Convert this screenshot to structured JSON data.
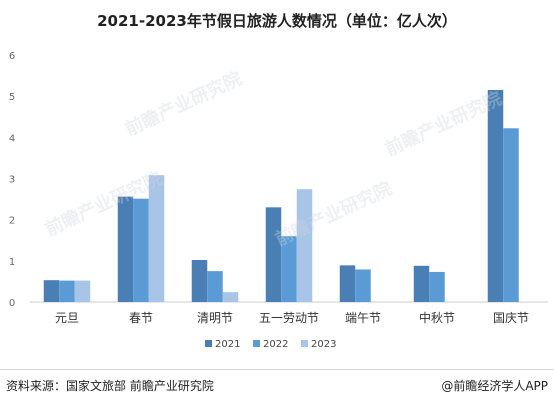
{
  "chart_data": {
    "type": "bar",
    "title": "2021-2023年节假日旅游人数情况（单位：亿人次）",
    "categories": [
      "元旦",
      "春节",
      "清明节",
      "五一劳动节",
      "端午节",
      "中秋节",
      "国庆节"
    ],
    "series": [
      {
        "name": "2021",
        "color": "#4a7fb5",
        "values": [
          0.53,
          2.56,
          1.02,
          2.3,
          0.89,
          0.88,
          5.15
        ]
      },
      {
        "name": "2022",
        "color": "#5b9bd5",
        "values": [
          0.52,
          2.51,
          0.75,
          1.6,
          0.79,
          0.73,
          4.22
        ]
      },
      {
        "name": "2023",
        "color": "#a8c4e6",
        "values": [
          0.52,
          3.08,
          0.24,
          2.74,
          null,
          null,
          null
        ]
      }
    ],
    "ylim": [
      0,
      6
    ],
    "yticks": [
      0,
      1,
      2,
      3,
      4,
      5,
      6
    ],
    "grid": false,
    "legend_position": "bottom-center"
  },
  "footer": {
    "source": "资料来源：国家文旅部 前瞻产业研究院",
    "credit": "@前瞻经济学人APP"
  },
  "watermark": {
    "text": "前瞻产业研究院"
  }
}
